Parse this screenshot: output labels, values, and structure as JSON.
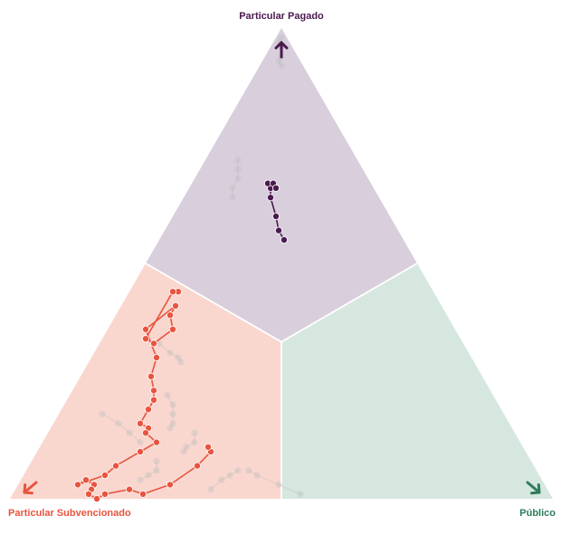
{
  "chart_data": {
    "type": "scatter",
    "subtype": "ternary",
    "corners": {
      "top": {
        "label": "Particular Pagado",
        "color": "#4a1a4e"
      },
      "left": {
        "label": "Particular Subvencionado",
        "color": "#e8543f"
      },
      "right": {
        "label": "Público",
        "color": "#2e7d5b"
      }
    },
    "region_colors": {
      "top": "#d9cfdc",
      "left": "#f9d7cf",
      "right": "#d6e7df"
    },
    "context_color": "#bbbbbb",
    "series": [
      {
        "corner": "top",
        "color": "#4a1a4e",
        "points": [
          [
            0.55,
            0.22,
            0.23
          ],
          [
            0.57,
            0.22,
            0.21
          ],
          [
            0.6,
            0.21,
            0.19
          ],
          [
            0.64,
            0.2,
            0.16
          ],
          [
            0.66,
            0.19,
            0.15
          ],
          [
            0.67,
            0.19,
            0.14
          ],
          [
            0.66,
            0.18,
            0.16
          ],
          [
            0.67,
            0.18,
            0.15
          ],
          [
            0.66,
            0.18,
            0.16
          ]
        ]
      },
      {
        "corner": "left",
        "color": "#e8543f",
        "points": [
          [
            0.44,
            0.47,
            0.09
          ],
          [
            0.44,
            0.48,
            0.08
          ],
          [
            0.34,
            0.58,
            0.08
          ],
          [
            0.33,
            0.57,
            0.1
          ],
          [
            0.36,
            0.52,
            0.12
          ],
          [
            0.39,
            0.51,
            0.1
          ],
          [
            0.41,
            0.49,
            0.1
          ],
          [
            0.36,
            0.57,
            0.07
          ],
          [
            0.3,
            0.58,
            0.12
          ],
          [
            0.26,
            0.61,
            0.13
          ],
          [
            0.23,
            0.62,
            0.15
          ],
          [
            0.21,
            0.63,
            0.16
          ],
          [
            0.19,
            0.65,
            0.16
          ],
          [
            0.16,
            0.68,
            0.16
          ],
          [
            0.15,
            0.67,
            0.18
          ],
          [
            0.14,
            0.68,
            0.18
          ],
          [
            0.12,
            0.67,
            0.21
          ],
          [
            0.1,
            0.71,
            0.19
          ],
          [
            0.07,
            0.77,
            0.16
          ],
          [
            0.05,
            0.8,
            0.15
          ],
          [
            0.03,
            0.86,
            0.11
          ],
          [
            0.04,
            0.84,
            0.12
          ],
          [
            0.03,
            0.83,
            0.14
          ],
          [
            0.02,
            0.84,
            0.14
          ],
          [
            0.01,
            0.85,
            0.14
          ],
          [
            0.0,
            0.84,
            0.16
          ],
          [
            0.01,
            0.82,
            0.17
          ],
          [
            0.02,
            0.77,
            0.21
          ],
          [
            0.01,
            0.75,
            0.24
          ],
          [
            0.03,
            0.69,
            0.28
          ],
          [
            0.07,
            0.62,
            0.31
          ],
          [
            0.1,
            0.58,
            0.32
          ],
          [
            0.11,
            0.58,
            0.31
          ]
        ]
      }
    ]
  }
}
